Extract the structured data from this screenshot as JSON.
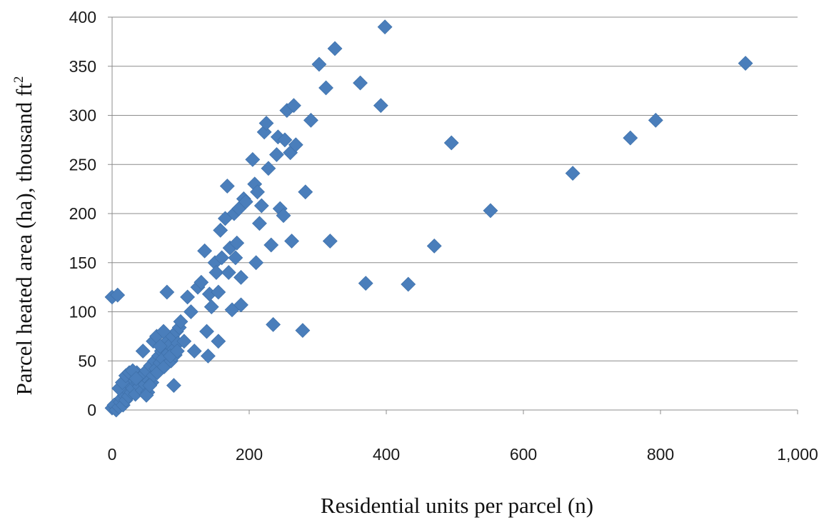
{
  "chart_data": {
    "type": "scatter",
    "xlabel": "Residential units per parcel (n)",
    "ylabel_main": "Parcel heated area (ha), thousand ft",
    "ylabel_sup": "2",
    "xlim": [
      0,
      1000
    ],
    "ylim": [
      0,
      400
    ],
    "x_ticks": [
      0,
      200,
      400,
      600,
      800,
      1000
    ],
    "x_tick_labels": [
      "0",
      "200",
      "400",
      "600",
      "800",
      "1,000"
    ],
    "y_ticks": [
      0,
      50,
      100,
      150,
      200,
      250,
      300,
      350,
      400
    ],
    "y_tick_labels": [
      "0",
      "50",
      "100",
      "150",
      "200",
      "250",
      "300",
      "350",
      "400"
    ],
    "grid": "horizontal",
    "legend": "none",
    "marker": "diamond",
    "color": "#4a7ebb",
    "points": [
      [
        0,
        115
      ],
      [
        8,
        117
      ],
      [
        0,
        2
      ],
      [
        3,
        5
      ],
      [
        6,
        0
      ],
      [
        10,
        3
      ],
      [
        12,
        8
      ],
      [
        14,
        12
      ],
      [
        16,
        5
      ],
      [
        18,
        15
      ],
      [
        20,
        10
      ],
      [
        22,
        20
      ],
      [
        24,
        14
      ],
      [
        26,
        25
      ],
      [
        28,
        18
      ],
      [
        30,
        22
      ],
      [
        32,
        30
      ],
      [
        34,
        16
      ],
      [
        36,
        38
      ],
      [
        38,
        28
      ],
      [
        40,
        24
      ],
      [
        42,
        32
      ],
      [
        44,
        20
      ],
      [
        46,
        36
      ],
      [
        48,
        26
      ],
      [
        50,
        40
      ],
      [
        52,
        18
      ],
      [
        54,
        30
      ],
      [
        56,
        45
      ],
      [
        58,
        28
      ],
      [
        60,
        35
      ],
      [
        62,
        50
      ],
      [
        64,
        42
      ],
      [
        66,
        38
      ],
      [
        68,
        55
      ],
      [
        70,
        48
      ],
      [
        72,
        60
      ],
      [
        74,
        52
      ],
      [
        76,
        44
      ],
      [
        78,
        62
      ],
      [
        80,
        70
      ],
      [
        82,
        58
      ],
      [
        84,
        66
      ],
      [
        86,
        50
      ],
      [
        88,
        75
      ],
      [
        90,
        62
      ],
      [
        92,
        56
      ],
      [
        94,
        80
      ],
      [
        96,
        68
      ],
      [
        98,
        84
      ],
      [
        10,
        22
      ],
      [
        15,
        28
      ],
      [
        20,
        35
      ],
      [
        25,
        38
      ],
      [
        30,
        40
      ],
      [
        35,
        32
      ],
      [
        45,
        60
      ],
      [
        50,
        15
      ],
      [
        55,
        25
      ],
      [
        60,
        70
      ],
      [
        65,
        75
      ],
      [
        70,
        65
      ],
      [
        75,
        80
      ],
      [
        80,
        120
      ],
      [
        85,
        55
      ],
      [
        90,
        25
      ],
      [
        95,
        60
      ],
      [
        100,
        90
      ],
      [
        105,
        70
      ],
      [
        110,
        115
      ],
      [
        115,
        100
      ],
      [
        120,
        60
      ],
      [
        125,
        125
      ],
      [
        130,
        130
      ],
      [
        135,
        162
      ],
      [
        140,
        55
      ],
      [
        138,
        80
      ],
      [
        142,
        118
      ],
      [
        145,
        105
      ],
      [
        150,
        150
      ],
      [
        152,
        140
      ],
      [
        155,
        120
      ],
      [
        155,
        70
      ],
      [
        158,
        183
      ],
      [
        160,
        155
      ],
      [
        165,
        195
      ],
      [
        168,
        228
      ],
      [
        170,
        140
      ],
      [
        172,
        165
      ],
      [
        175,
        102
      ],
      [
        178,
        200
      ],
      [
        180,
        155
      ],
      [
        182,
        170
      ],
      [
        185,
        205
      ],
      [
        188,
        135
      ],
      [
        188,
        107
      ],
      [
        192,
        215
      ],
      [
        195,
        212
      ],
      [
        205,
        255
      ],
      [
        208,
        230
      ],
      [
        210,
        150
      ],
      [
        212,
        222
      ],
      [
        215,
        190
      ],
      [
        218,
        208
      ],
      [
        222,
        283
      ],
      [
        225,
        292
      ],
      [
        228,
        246
      ],
      [
        232,
        168
      ],
      [
        235,
        87
      ],
      [
        240,
        260
      ],
      [
        242,
        278
      ],
      [
        245,
        205
      ],
      [
        250,
        198
      ],
      [
        252,
        275
      ],
      [
        255,
        305
      ],
      [
        260,
        262
      ],
      [
        262,
        172
      ],
      [
        265,
        310
      ],
      [
        268,
        270
      ],
      [
        278,
        81
      ],
      [
        282,
        222
      ],
      [
        290,
        295
      ],
      [
        302,
        352
      ],
      [
        312,
        328
      ],
      [
        318,
        172
      ],
      [
        325,
        368
      ],
      [
        362,
        333
      ],
      [
        370,
        129
      ],
      [
        392,
        310
      ],
      [
        398,
        390
      ],
      [
        432,
        128
      ],
      [
        470,
        167
      ],
      [
        495,
        272
      ],
      [
        552,
        203
      ],
      [
        672,
        241
      ],
      [
        756,
        277
      ],
      [
        793,
        295
      ],
      [
        924,
        353
      ]
    ]
  }
}
